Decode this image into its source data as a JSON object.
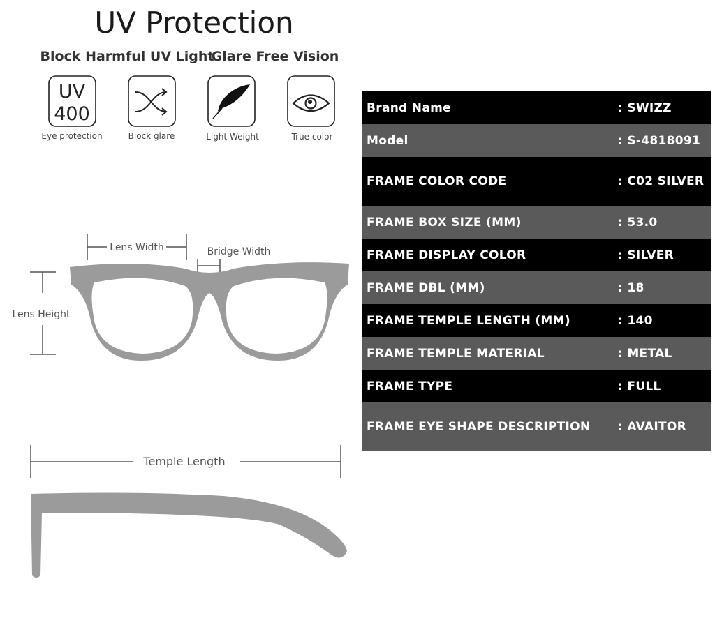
{
  "header": {
    "title": "UV Protection",
    "subtitle_left": "Block Harmful UV Light",
    "subtitle_right": "Glare Free Vision"
  },
  "features": [
    {
      "icon": "uv400-icon",
      "icon_text_top": "UV",
      "icon_text_bottom": "400",
      "label": "Eye protection"
    },
    {
      "icon": "shuffle-arrows-icon",
      "label": "Block glare"
    },
    {
      "icon": "feather-icon",
      "label": "Light Weight"
    },
    {
      "icon": "eye-icon",
      "label": "True color"
    }
  ],
  "diagram": {
    "lens_width": "Lens Width",
    "bridge_width": "Bridge Width",
    "lens_height": "Lens Height",
    "temple_length": "Temple Length",
    "frame_color": "#9b9b9b"
  },
  "specs": {
    "colors": {
      "dark": "#000000",
      "light": "#5a5a5a"
    },
    "rows": [
      {
        "label": "Brand Name",
        "value": ": SWIZZ"
      },
      {
        "label": "Model",
        "value": ": S-4818091"
      },
      {
        "label": "FRAME COLOR CODE",
        "value": ": C02 SILVER"
      },
      {
        "label": "FRAME BOX SIZE (MM)",
        "value": ": 53.0"
      },
      {
        "label": "FRAME DISPLAY COLOR",
        "value": ": SILVER"
      },
      {
        "label": "FRAME DBL (MM)",
        "value": ": 18"
      },
      {
        "label": "FRAME TEMPLE LENGTH (MM)",
        "value": ": 140"
      },
      {
        "label": "FRAME TEMPLE MATERIAL",
        "value": ": METAL"
      },
      {
        "label": "FRAME TYPE",
        "value": ": FULL"
      },
      {
        "label": "FRAME EYE SHAPE DESCRIPTION",
        "value": ": AVAITOR"
      }
    ]
  }
}
